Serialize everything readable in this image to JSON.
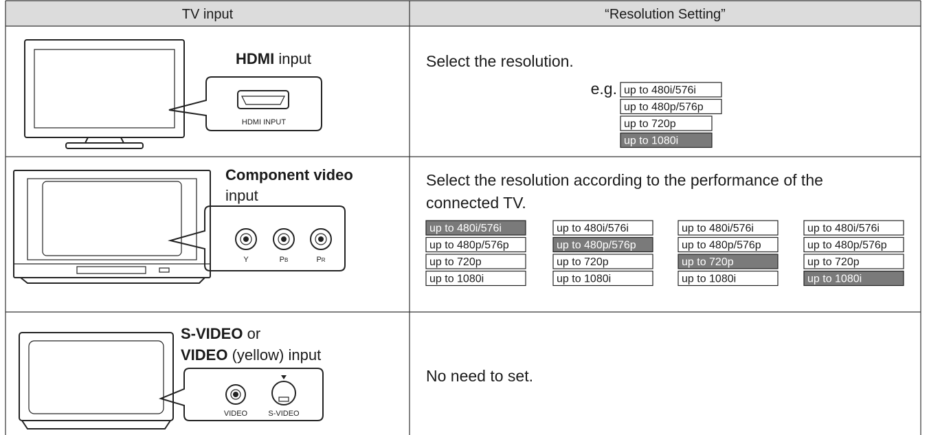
{
  "table": {
    "header": [
      "TV input",
      "“Resolution Setting”"
    ],
    "rows": [
      {
        "input_label": [
          [
            {
              "text": "HDMI",
              "bold": true
            },
            {
              "text": " input",
              "bold": false
            }
          ]
        ],
        "connector_labels": [
          {
            "text": "HDMI INPUT"
          }
        ],
        "instruction": [
          "Select the resolution."
        ],
        "example_prefix": "e.g.",
        "option_sets": [
          {
            "options": [
              "up to 480i/576i",
              "up to 480p/576p",
              "up to 720p",
              "up to 1080i"
            ],
            "selected": 3
          }
        ]
      },
      {
        "input_label": [
          [
            {
              "text": "Component video",
              "bold": true
            }
          ],
          [
            {
              "text": "input",
              "bold": false
            }
          ]
        ],
        "connector_labels": [
          {
            "text": "Y"
          },
          {
            "text": "P",
            "sub": "B"
          },
          {
            "text": "P",
            "sub": "R"
          }
        ],
        "instruction": [
          "Select the resolution according to the performance of the",
          "connected TV."
        ],
        "option_sets": [
          {
            "options": [
              "up to 480i/576i",
              "up to 480p/576p",
              "up to 720p",
              "up to 1080i"
            ],
            "selected": 0
          },
          {
            "options": [
              "up to 480i/576i",
              "up to 480p/576p",
              "up to 720p",
              "up to 1080i"
            ],
            "selected": 1
          },
          {
            "options": [
              "up to 480i/576i",
              "up to 480p/576p",
              "up to 720p",
              "up to 1080i"
            ],
            "selected": 2
          },
          {
            "options": [
              "up to 480i/576i",
              "up to 480p/576p",
              "up to 720p",
              "up to 1080i"
            ],
            "selected": 3
          }
        ]
      },
      {
        "input_label": [
          [
            {
              "text": "S-VIDEO",
              "bold": true
            },
            {
              "text": " or",
              "bold": false
            }
          ],
          [
            {
              "text": "VIDEO",
              "bold": true
            },
            {
              "text": " (yellow) input",
              "bold": false
            }
          ]
        ],
        "connector_labels": [
          {
            "text": "VIDEO"
          },
          {
            "text": "S-VIDEO"
          }
        ],
        "instruction": [
          "No need to set."
        ],
        "option_sets": []
      }
    ]
  }
}
